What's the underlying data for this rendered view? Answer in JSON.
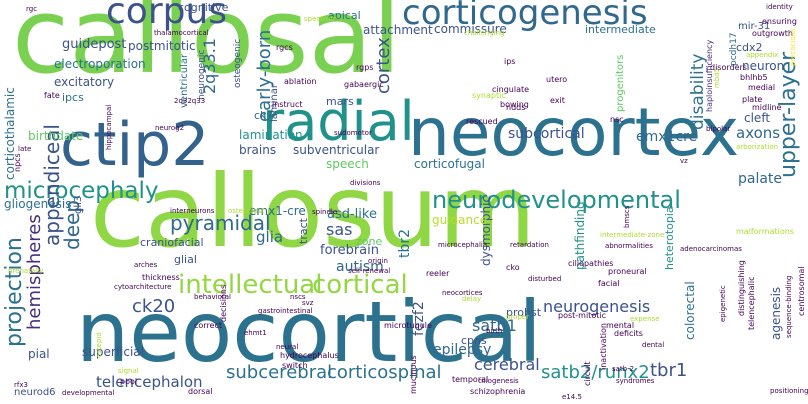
{
  "palette": {
    "purple": "#440154",
    "indigo": "#472d7b",
    "blue": "#3b528b",
    "steel": "#2c728e",
    "teal": "#21918c",
    "green": "#28ae80",
    "lime": "#5ec962",
    "yellowgreen": "#addc30",
    "yellow": "#fde725"
  },
  "words": [
    {
      "text": "callosal",
      "color": "#7ad151",
      "size": 104
    },
    {
      "text": "callosum",
      "color": "#8fd744",
      "size": 100
    },
    {
      "text": "neocortical",
      "color": "#2c728e",
      "size": 84
    },
    {
      "text": "neocortex",
      "color": "#2c728e",
      "size": 66
    },
    {
      "text": "ctip2",
      "color": "#33638d",
      "size": 60
    },
    {
      "text": "radial",
      "color": "#21918c",
      "size": 54
    },
    {
      "text": "corpus",
      "color": "#3b528b",
      "size": 36
    },
    {
      "text": "corticogenesis",
      "color": "#31688e",
      "size": 34
    },
    {
      "text": "intellectual",
      "color": "#93d741",
      "size": 26
    },
    {
      "text": "cortical",
      "color": "#93d741",
      "size": 26
    },
    {
      "text": "neurodevelopmental",
      "color": "#21918c",
      "size": 24
    },
    {
      "text": "microcephaly",
      "color": "#21918c",
      "size": 23
    },
    {
      "text": "appendiceal",
      "color": "#3b528b",
      "size": 20
    },
    {
      "text": "upper-layer",
      "color": "#2c728e",
      "size": 22
    },
    {
      "text": "pyramidal",
      "color": "#31688e",
      "size": 20
    },
    {
      "text": "projection",
      "color": "#2c728e",
      "size": 22
    },
    {
      "text": "subcerebral",
      "color": "#2c728e",
      "size": 18
    },
    {
      "text": "corticospinal",
      "color": "#2c728e",
      "size": 18
    },
    {
      "text": "satb2/runx2",
      "color": "#21918c",
      "size": 18
    },
    {
      "text": "tbr1",
      "color": "#3b528b",
      "size": 18
    },
    {
      "text": "early-born",
      "color": "#2c728e",
      "size": 18
    },
    {
      "text": "cortex",
      "color": "#3b528b",
      "size": 18
    },
    {
      "text": "disability",
      "color": "#2c728e",
      "size": 17
    },
    {
      "text": "hemispheres",
      "color": "#472d7b",
      "size": 18
    },
    {
      "text": "ck20",
      "color": "#3b528b",
      "size": 18
    },
    {
      "text": "neurogenesis",
      "color": "#3b528b",
      "size": 16
    },
    {
      "text": "cerebral",
      "color": "#3b528b",
      "size": 16
    },
    {
      "text": "telencephalon",
      "color": "#3b528b",
      "size": 15
    },
    {
      "text": "epilepsy",
      "color": "#31688e",
      "size": 14
    },
    {
      "text": "satb1",
      "color": "#31688e",
      "size": 16
    },
    {
      "text": "subcortical",
      "color": "#3b528b",
      "size": 14
    },
    {
      "text": "emx1cre",
      "color": "#31688e",
      "size": 14
    },
    {
      "text": "axons",
      "color": "#31688e",
      "size": 15
    },
    {
      "text": "palate",
      "color": "#31688e",
      "size": 14
    },
    {
      "text": "2q33.1",
      "color": "#31688e",
      "size": 16
    },
    {
      "text": "deep",
      "color": "#31688e",
      "size": 20
    },
    {
      "text": "sas",
      "color": "#3b528b",
      "size": 16
    },
    {
      "text": "glia",
      "color": "#31688e",
      "size": 15
    },
    {
      "text": "autism",
      "color": "#31688e",
      "size": 14
    },
    {
      "text": "forebrain",
      "color": "#3b528b",
      "size": 13
    },
    {
      "text": "asd-like",
      "color": "#2c728e",
      "size": 13
    },
    {
      "text": "tbr2",
      "color": "#2c728e",
      "size": 14
    },
    {
      "text": "fezf2",
      "color": "#3b528b",
      "size": 14
    },
    {
      "text": "dysmorphic",
      "color": "#3b528b",
      "size": 12
    },
    {
      "text": "pathfinding",
      "color": "#21918c",
      "size": 12
    },
    {
      "text": "heterotopia",
      "color": "#21918c",
      "size": 11
    },
    {
      "text": "colorectal",
      "color": "#2c728e",
      "size": 12
    },
    {
      "text": "agenesis",
      "color": "#3b528b",
      "size": 12
    },
    {
      "text": "cpns",
      "color": "#3b528b",
      "size": 11
    },
    {
      "text": "pial",
      "color": "#3b528b",
      "size": 12
    },
    {
      "text": "neurod6",
      "color": "#3b528b",
      "size": 10
    },
    {
      "text": "superficial",
      "color": "#3b528b",
      "size": 12
    },
    {
      "text": "guidepost",
      "color": "#3b528b",
      "size": 13
    },
    {
      "text": "postmitotic",
      "color": "#3b528b",
      "size": 12
    },
    {
      "text": "electroporation",
      "color": "#2c728e",
      "size": 12
    },
    {
      "text": "excitatory",
      "color": "#3b528b",
      "size": 12
    },
    {
      "text": "ipcs",
      "color": "#2c728e",
      "size": 11
    },
    {
      "text": "birthdate",
      "color": "#5ec962",
      "size": 12
    },
    {
      "text": "corticothalamic",
      "color": "#2c728e",
      "size": 12
    },
    {
      "text": "gliogenesis",
      "color": "#2c728e",
      "size": 12
    },
    {
      "text": "lamination",
      "color": "#21918c",
      "size": 12
    },
    {
      "text": "brains",
      "color": "#3b528b",
      "size": 12
    },
    {
      "text": "subventricular",
      "color": "#3b528b",
      "size": 12
    },
    {
      "text": "speech",
      "color": "#5ec962",
      "size": 12
    },
    {
      "text": "guidance",
      "color": "#b5de2b",
      "size": 12
    },
    {
      "text": "emx1-cre",
      "color": "#31688e",
      "size": 12
    },
    {
      "text": "craniofacial",
      "color": "#3b528b",
      "size": 11
    },
    {
      "text": "glial",
      "color": "#3b528b",
      "size": 11
    },
    {
      "text": "zone",
      "color": "#5ec962",
      "size": 11
    },
    {
      "text": "tract",
      "color": "#3b528b",
      "size": 11
    },
    {
      "text": "commissure",
      "color": "#3b528b",
      "size": 12
    },
    {
      "text": "attachment",
      "color": "#3b528b",
      "size": 12
    },
    {
      "text": "intermediate",
      "color": "#2c728e",
      "size": 11
    },
    {
      "text": "cdx2",
      "color": "#3b528b",
      "size": 11
    },
    {
      "text": "cleft",
      "color": "#3b528b",
      "size": 12
    },
    {
      "text": "neuron",
      "color": "#3b528b",
      "size": 12
    },
    {
      "text": "corticofugal",
      "color": "#2c728e",
      "size": 12
    },
    {
      "text": "ck7",
      "color": "#31688e",
      "size": 11
    },
    {
      "text": "mars",
      "color": "#3b528b",
      "size": 11
    },
    {
      "text": "apical",
      "color": "#2c728e",
      "size": 11
    },
    {
      "text": "cognitive",
      "color": "#3b528b",
      "size": 11
    },
    {
      "text": "mir-31",
      "color": "#3b528b",
      "size": 10
    },
    {
      "text": "probst",
      "color": "#3b528b",
      "size": 11
    },
    {
      "text": "gli3",
      "color": "#3b528b",
      "size": 10
    },
    {
      "text": "ventricular",
      "color": "#2c728e",
      "size": 10
    },
    {
      "text": "laminar",
      "color": "#3b528b",
      "size": 10
    },
    {
      "text": "osteogenic",
      "color": "#3b528b",
      "size": 9
    },
    {
      "text": "neurogenic",
      "color": "#3b528b",
      "size": 9
    },
    {
      "text": "pcdh17",
      "color": "#31688e",
      "size": 9
    },
    {
      "text": "ensuring",
      "color": "#440154",
      "size": 8
    },
    {
      "text": "outgrowth",
      "color": "#440154",
      "size": 8
    },
    {
      "text": "haploinsufficiency",
      "color": "#472d7b",
      "size": 8
    },
    {
      "text": "progenitors",
      "color": "#5ec962",
      "size": 10
    },
    {
      "text": "bhlhb5",
      "color": "#440154",
      "size": 8
    },
    {
      "text": "medial",
      "color": "#440154",
      "size": 8
    },
    {
      "text": "plate",
      "color": "#440154",
      "size": 8
    },
    {
      "text": "midline",
      "color": "#440154",
      "size": 8
    },
    {
      "text": "precocious",
      "color": "#fde725",
      "size": 7
    },
    {
      "text": "mbd5",
      "color": "#addc30",
      "size": 7
    },
    {
      "text": "arborization",
      "color": "#addc30",
      "size": 7
    },
    {
      "text": "identity",
      "color": "#440154",
      "size": 7
    },
    {
      "text": "malformations",
      "color": "#addc30",
      "size": 8
    },
    {
      "text": "bipolar",
      "color": "#440154",
      "size": 7
    },
    {
      "text": "vz",
      "color": "#440154",
      "size": 7
    },
    {
      "text": "disorders",
      "color": "#440154",
      "size": 8
    },
    {
      "text": "utero",
      "color": "#440154",
      "size": 8
    },
    {
      "text": "ips",
      "color": "#440154",
      "size": 8
    },
    {
      "text": "rgps",
      "color": "#440154",
      "size": 8
    },
    {
      "text": "rgcs",
      "color": "#440154",
      "size": 8
    },
    {
      "text": "cingulate",
      "color": "#440154",
      "size": 8
    },
    {
      "text": "gabaergic",
      "color": "#440154",
      "size": 8
    },
    {
      "text": "synaptic",
      "color": "#addc30",
      "size": 8
    },
    {
      "text": "ndds",
      "color": "#440154",
      "size": 8
    },
    {
      "text": "exit",
      "color": "#440154",
      "size": 8
    },
    {
      "text": "bowing",
      "color": "#440154",
      "size": 8
    },
    {
      "text": "rescued",
      "color": "#440154",
      "size": 8
    },
    {
      "text": "nsc",
      "color": "#440154",
      "size": 8
    },
    {
      "text": "sudomotor",
      "color": "#440154",
      "size": 7
    },
    {
      "text": "spectrum",
      "color": "#addc30",
      "size": 7
    },
    {
      "text": "challenging",
      "color": "#addc30",
      "size": 7
    },
    {
      "text": "thalamocortical",
      "color": "#440154",
      "size": 7
    },
    {
      "text": "rgc",
      "color": "#440154",
      "size": 7
    },
    {
      "text": "fate",
      "color": "#440154",
      "size": 8
    },
    {
      "text": "ablation",
      "color": "#440154",
      "size": 8
    },
    {
      "text": "instruct",
      "color": "#440154",
      "size": 8
    },
    {
      "text": "2q32q33",
      "color": "#440154",
      "size": 7
    },
    {
      "text": "neurog2",
      "color": "#440154",
      "size": 7
    },
    {
      "text": "hippocampal",
      "color": "#440154",
      "size": 7
    },
    {
      "text": "late",
      "color": "#440154",
      "size": 7
    },
    {
      "text": "npcs",
      "color": "#440154",
      "size": 8
    },
    {
      "text": "prenatally",
      "color": "#addc30",
      "size": 7
    },
    {
      "text": "divisions",
      "color": "#440154",
      "size": 7
    },
    {
      "text": "interneurons",
      "color": "#440154",
      "size": 7
    },
    {
      "text": "osteoblast",
      "color": "#addc30",
      "size": 7
    },
    {
      "text": "spindle",
      "color": "#440154",
      "size": 7
    },
    {
      "text": "self-renewal",
      "color": "#440154",
      "size": 7
    },
    {
      "text": "origin",
      "color": "#440154",
      "size": 7
    },
    {
      "text": "microcephalia",
      "color": "#440154",
      "size": 7
    },
    {
      "text": "retardation",
      "color": "#440154",
      "size": 7
    },
    {
      "text": "abnormalities",
      "color": "#440154",
      "size": 7
    },
    {
      "text": "adenocarcinomas",
      "color": "#440154",
      "size": 7
    },
    {
      "text": "cko",
      "color": "#440154",
      "size": 8
    },
    {
      "text": "ciliopathies",
      "color": "#440154",
      "size": 8
    },
    {
      "text": "reeler",
      "color": "#440154",
      "size": 8
    },
    {
      "text": "disturbed",
      "color": "#440154",
      "size": 7
    },
    {
      "text": "facial",
      "color": "#440154",
      "size": 8
    },
    {
      "text": "proneural",
      "color": "#440154",
      "size": 8
    },
    {
      "text": "neocortices",
      "color": "#440154",
      "size": 7
    },
    {
      "text": "thickness",
      "color": "#440154",
      "size": 8
    },
    {
      "text": "arches",
      "color": "#440154",
      "size": 7
    },
    {
      "text": "cytoarchitecture",
      "color": "#440154",
      "size": 7
    },
    {
      "text": "behavioral",
      "color": "#440154",
      "size": 7
    },
    {
      "text": "nscs",
      "color": "#440154",
      "size": 7
    },
    {
      "text": "svz",
      "color": "#440154",
      "size": 7
    },
    {
      "text": "gastrointestinal",
      "color": "#440154",
      "size": 7
    },
    {
      "text": "delay",
      "color": "#addc30",
      "size": 7
    },
    {
      "text": "proper",
      "color": "#addc30",
      "size": 7
    },
    {
      "text": "post-mitotic",
      "color": "#440154",
      "size": 8
    },
    {
      "text": "mental",
      "color": "#440154",
      "size": 8
    },
    {
      "text": "deficits",
      "color": "#440154",
      "size": 8
    },
    {
      "text": "expense",
      "color": "#addc30",
      "size": 7
    },
    {
      "text": "centrosomal",
      "color": "#440154",
      "size": 8
    },
    {
      "text": "sequence-binding",
      "color": "#440154",
      "size": 7
    },
    {
      "text": "telencephalic",
      "color": "#440154",
      "size": 8
    },
    {
      "text": "distinguishing",
      "color": "#440154",
      "size": 8
    },
    {
      "text": "epigenetic",
      "color": "#440154",
      "size": 7
    },
    {
      "text": "positioning",
      "color": "#440154",
      "size": 7
    },
    {
      "text": "correct",
      "color": "#440154",
      "size": 8
    },
    {
      "text": "birth",
      "color": "#440154",
      "size": 7
    },
    {
      "text": "microtubule",
      "color": "#440154",
      "size": 8
    },
    {
      "text": "signal",
      "color": "#addc30",
      "size": 7
    },
    {
      "text": "pool",
      "color": "#440154",
      "size": 8
    },
    {
      "text": "rfx3",
      "color": "#440154",
      "size": 7
    },
    {
      "text": "ostepid",
      "color": "#addc30",
      "size": 7
    },
    {
      "text": "developmental",
      "color": "#440154",
      "size": 7
    },
    {
      "text": "dorsal",
      "color": "#440154",
      "size": 8
    },
    {
      "text": "ehmt1",
      "color": "#440154",
      "size": 7
    },
    {
      "text": "decisions",
      "color": "#440154",
      "size": 8
    },
    {
      "text": "neural",
      "color": "#440154",
      "size": 7
    },
    {
      "text": "hydrocephalus",
      "color": "#440154",
      "size": 8
    },
    {
      "text": "switch",
      "color": "#440154",
      "size": 8
    },
    {
      "text": "mucinous",
      "color": "#440154",
      "size": 8
    },
    {
      "text": "temporal",
      "color": "#440154",
      "size": 8
    },
    {
      "text": "ciliogenesis",
      "color": "#440154",
      "size": 7
    },
    {
      "text": "schizophrenia",
      "color": "#440154",
      "size": 8
    },
    {
      "text": "circuit",
      "color": "#440154",
      "size": 8
    },
    {
      "text": "inactivation",
      "color": "#440154",
      "size": 8
    },
    {
      "text": "syndromes",
      "color": "#440154",
      "size": 7
    },
    {
      "text": "satb-2",
      "color": "#440154",
      "size": 7
    },
    {
      "text": "dental",
      "color": "#440154",
      "size": 7
    },
    {
      "text": "e14.5",
      "color": "#440154",
      "size": 7
    },
    {
      "text": "appendix",
      "color": "#addc30",
      "size": 7
    },
    {
      "text": "bmscs",
      "color": "#440154",
      "size": 7
    },
    {
      "text": "intermediate-zone",
      "color": "#addc30",
      "size": 7
    },
    {
      "text": "lhx2",
      "color": "#440154",
      "size": 7
    },
    {
      "text": "neurons",
      "color": "#440154",
      "size": 7
    }
  ]
}
